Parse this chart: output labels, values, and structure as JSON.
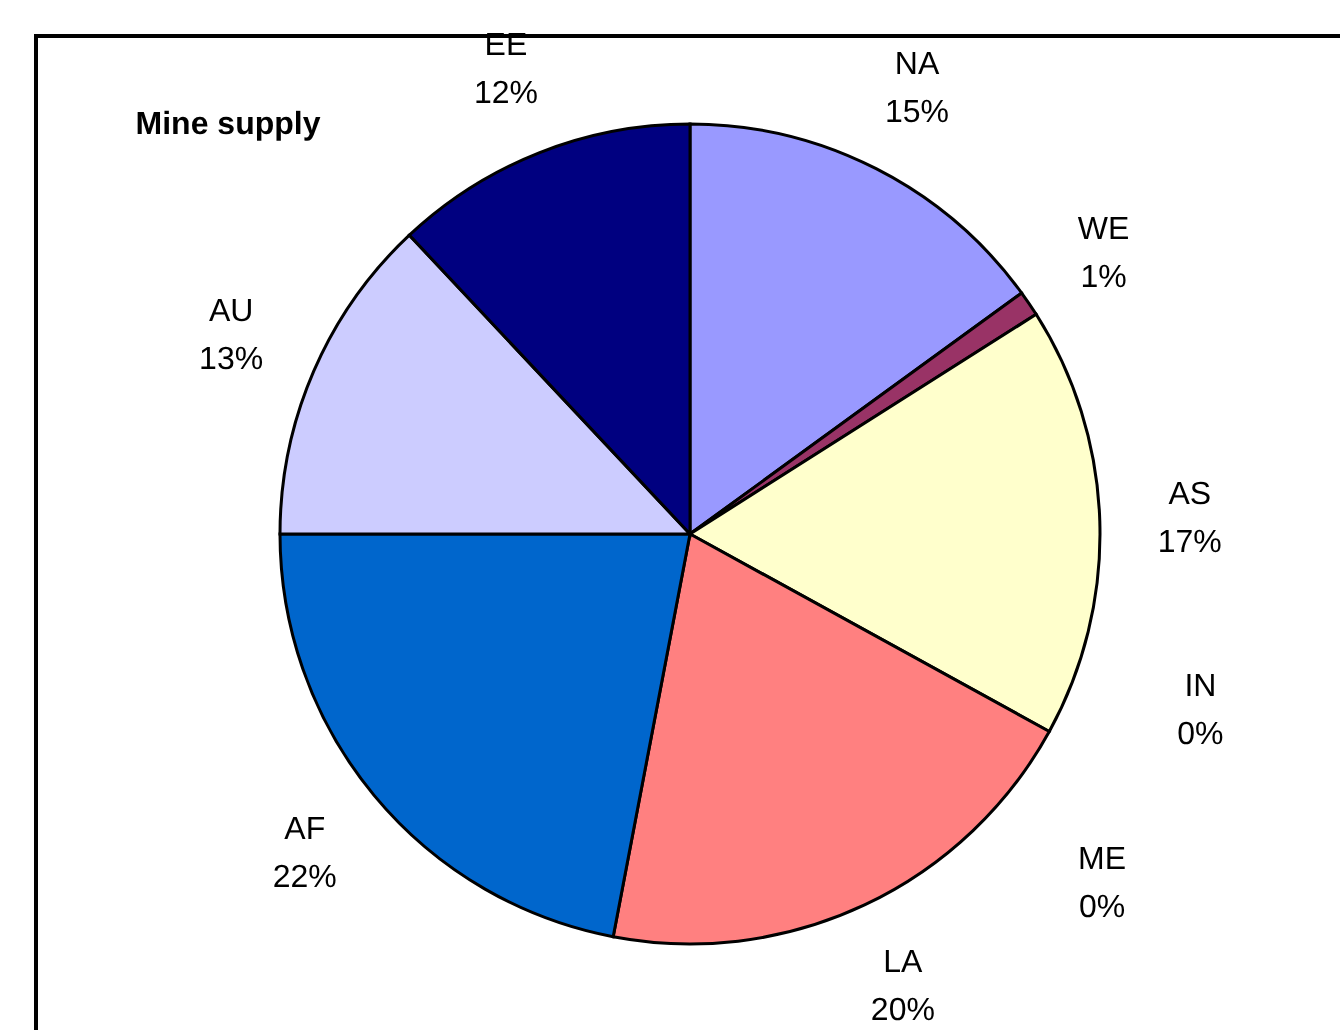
{
  "chart_data": {
    "type": "pie",
    "title": "Mine supply",
    "categories": [
      "NA",
      "WE",
      "AS",
      "IN",
      "ME",
      "LA",
      "AF",
      "AU",
      "EE"
    ],
    "values": [
      15,
      1,
      17,
      0,
      0,
      20,
      22,
      13,
      12
    ],
    "value_labels": [
      "15%",
      "1%",
      "17%",
      "0%",
      "0%",
      "20%",
      "22%",
      "13%",
      "12%"
    ],
    "colors": [
      "#9999ff",
      "#993366",
      "#ffffcc",
      "#660066",
      "#330033",
      "#ff8080",
      "#0066cc",
      "#ccccff",
      "#000080"
    ]
  }
}
